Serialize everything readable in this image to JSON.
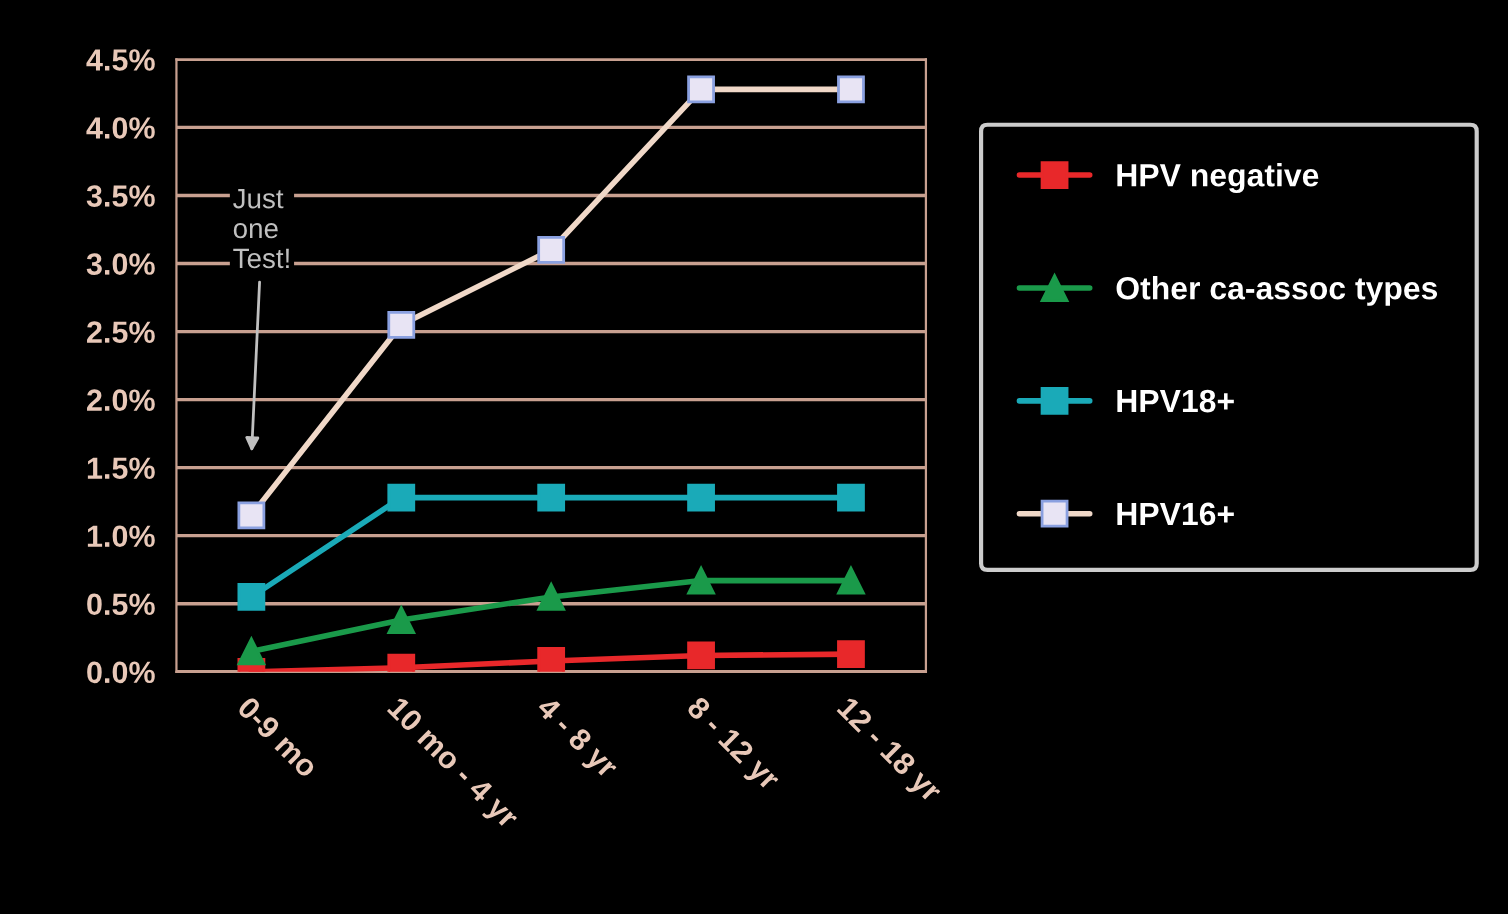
{
  "chart_data": {
    "type": "line",
    "categories": [
      "0-9 mo",
      "10 mo - 4 yr",
      "4 - 8 yr",
      "8 - 12 yr",
      "12 - 18 yr"
    ],
    "series": [
      {
        "name": "HPV negative",
        "color": "#e8282a",
        "marker": "square",
        "values": [
          0.0,
          0.03,
          0.08,
          0.12,
          0.13
        ]
      },
      {
        "name": "Other ca-assoc types",
        "color": "#1a9a4a",
        "marker": "triangle",
        "values": [
          0.15,
          0.38,
          0.55,
          0.67,
          0.67
        ]
      },
      {
        "name": "HPV18+",
        "color": "#1aaab8",
        "marker": "square",
        "values": [
          0.55,
          1.28,
          1.28,
          1.28,
          1.28
        ]
      },
      {
        "name": "HPV16+",
        "color": "#f0d8c8",
        "marker": "square",
        "values": [
          1.15,
          2.55,
          3.1,
          4.28,
          4.28
        ]
      }
    ],
    "ylim": [
      0,
      4.5
    ],
    "yticks": [
      {
        "value": 0,
        "label": "0.0%"
      },
      {
        "value": 0.5,
        "label": "0.5%"
      },
      {
        "value": 1,
        "label": "1.0%"
      },
      {
        "value": 1.5,
        "label": "1.5%"
      },
      {
        "value": 2,
        "label": "2.0%"
      },
      {
        "value": 2.5,
        "label": "2.5%"
      },
      {
        "value": 3,
        "label": "3.0%"
      },
      {
        "value": 3.5,
        "label": "3.5%"
      },
      {
        "value": 4,
        "label": "4.0%"
      },
      {
        "value": 4.5,
        "label": "4.5%"
      }
    ],
    "grid": "y",
    "legend": "right",
    "line_style": "solid",
    "annotations": [
      "Just\none\nTest!"
    ]
  }
}
